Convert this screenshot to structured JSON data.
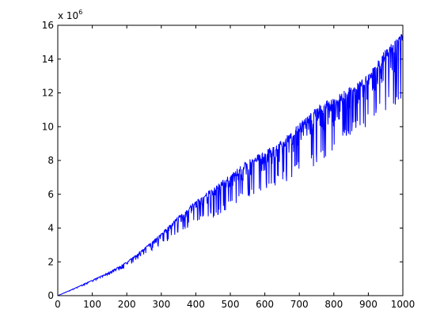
{
  "chart_data": {
    "type": "line",
    "title": "",
    "xlabel": "",
    "ylabel": "",
    "y_exponent_label": "x 10",
    "y_exponent": "6",
    "xlim": [
      0,
      1000
    ],
    "ylim": [
      0,
      16
    ],
    "x_ticks": [
      0,
      100,
      200,
      300,
      400,
      500,
      600,
      700,
      800,
      900,
      1000
    ],
    "y_ticks": [
      0,
      2,
      4,
      6,
      8,
      10,
      12,
      14,
      16
    ],
    "x_tick_labels": [
      "0",
      "100",
      "200",
      "300",
      "400",
      "500",
      "600",
      "700",
      "800",
      "900",
      "1000"
    ],
    "y_tick_labels": [
      "0",
      "2",
      "4",
      "6",
      "8",
      "10",
      "12",
      "14",
      "16"
    ],
    "grid": false,
    "legend": "none",
    "series": [
      {
        "color": "#0000ff",
        "envelope": {
          "x": [
            0,
            50,
            100,
            150,
            200,
            250,
            300,
            350,
            400,
            450,
            500,
            550,
            600,
            650,
            700,
            750,
            800,
            850,
            900,
            950,
            1000
          ],
          "upper": [
            0.0,
            0.45,
            0.92,
            1.4,
            2.0,
            2.8,
            3.7,
            4.7,
            5.6,
            6.4,
            7.2,
            8.0,
            8.6,
            9.2,
            10.2,
            11.2,
            11.8,
            12.4,
            13.1,
            14.6,
            15.6
          ],
          "lower": [
            0.0,
            0.4,
            0.82,
            1.25,
            1.7,
            2.4,
            3.0,
            3.6,
            4.4,
            4.6,
            5.2,
            5.8,
            6.2,
            6.6,
            7.2,
            7.6,
            8.2,
            9.6,
            10.0,
            10.8,
            11.2
          ]
        }
      }
    ]
  }
}
